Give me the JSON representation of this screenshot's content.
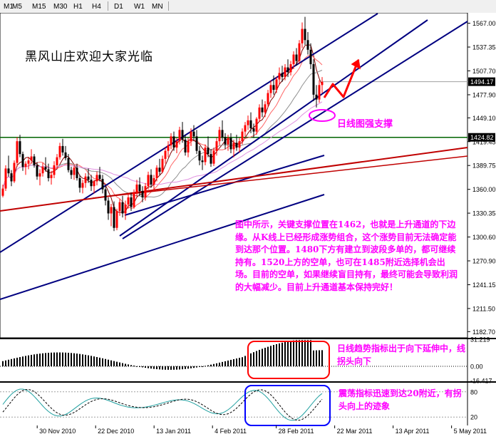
{
  "toolbar": {
    "timeframes": [
      {
        "id": "m1",
        "label": "M1"
      },
      {
        "id": "m5",
        "label": "M5"
      },
      {
        "id": "m15",
        "label": "M15"
      },
      {
        "id": "m30",
        "label": "M30"
      },
      {
        "id": "h1",
        "label": "H1"
      },
      {
        "id": "h4",
        "label": "H4"
      },
      {
        "id": "d1",
        "label": "D1"
      },
      {
        "id": "w1",
        "label": "W1"
      },
      {
        "id": "mn",
        "label": "MN"
      }
    ]
  },
  "annotations": {
    "watermark": "黑风山庄欢迎大家光临",
    "support_label": "日线图强支撑",
    "main_text": "图中所示，关键支撑位置在1462，也就是上升通道的下边缘。从K线上已经形成涨势组合，这个涨势目前无法确定能到达那个位置。1480下方有建立到波段多单的，都可继续持有。1520上方的空单，也可在1485附近选择机会出场。目前的空单，如果继续盲目持有，最终可能会导致利润的大幅减少。目前上升通道基本保持完好！",
    "trend_note": "日线趋势指标出于向下延伸中，线拐头向下",
    "osc_note": "震荡指标迅速到达20附近，有拐头向上的迹象"
  },
  "colors": {
    "candle_up": "#ff0000",
    "candle_down": "#000000",
    "channel": "#000080",
    "redline": "#c00000",
    "hline": "#006400",
    "annotation": "#ff00ff",
    "arrow": "#ff0000",
    "box_red": "#ff0000",
    "box_blue": "#0000ff",
    "price_box": "#000000"
  },
  "chart_data": [
    {
      "type": "candlestick",
      "x_tick_labels": [
        "30 Nov 2010",
        "22 Dec 2010",
        "13 Jan 2011",
        "4 Feb 2011",
        "28 Feb 2011",
        "22 Mar 2011",
        "13 Apr 2011",
        "5 May 2011"
      ],
      "y_tick_labels": [
        "1567.00",
        "1537.35",
        "1507.70",
        "1477.90",
        "1449.10",
        "1419.45",
        "1389.75",
        "1360.00",
        "1330.35",
        "1300.60",
        "1270.90",
        "1241.15",
        "1211.50",
        "1182.70"
      ],
      "ylim": [
        1175,
        1580
      ],
      "price_markers": [
        {
          "value": 1494.17,
          "label": "1494.17"
        },
        {
          "value": 1424.82,
          "label": "1424.82"
        }
      ],
      "x_dates": [
        "2010-11-16",
        "2011-05-11"
      ],
      "ohlc": [
        [
          1352,
          1366,
          1350,
          1361
        ],
        [
          1361,
          1390,
          1358,
          1386
        ],
        [
          1386,
          1402,
          1376,
          1380
        ],
        [
          1380,
          1384,
          1364,
          1370
        ],
        [
          1370,
          1396,
          1368,
          1393
        ],
        [
          1393,
          1425,
          1388,
          1420
        ],
        [
          1420,
          1428,
          1400,
          1404
        ],
        [
          1404,
          1407,
          1383,
          1388
        ],
        [
          1388,
          1395,
          1378,
          1392
        ],
        [
          1392,
          1400,
          1385,
          1396
        ],
        [
          1396,
          1410,
          1392,
          1401
        ],
        [
          1401,
          1404,
          1387,
          1390
        ],
        [
          1390,
          1394,
          1372,
          1376
        ],
        [
          1376,
          1385,
          1365,
          1380
        ],
        [
          1380,
          1393,
          1376,
          1388
        ],
        [
          1388,
          1400,
          1382,
          1385
        ],
        [
          1385,
          1392,
          1370,
          1374
        ],
        [
          1374,
          1383,
          1366,
          1378
        ],
        [
          1378,
          1395,
          1374,
          1390
        ],
        [
          1390,
          1404,
          1386,
          1400
        ],
        [
          1400,
          1418,
          1397,
          1414
        ],
        [
          1414,
          1423,
          1402,
          1406
        ],
        [
          1406,
          1414,
          1396,
          1399
        ],
        [
          1399,
          1404,
          1381,
          1384
        ],
        [
          1384,
          1388,
          1373,
          1378
        ],
        [
          1378,
          1390,
          1372,
          1387
        ],
        [
          1387,
          1392,
          1371,
          1374
        ],
        [
          1374,
          1378,
          1356,
          1362
        ],
        [
          1362,
          1372,
          1355,
          1368
        ],
        [
          1368,
          1380,
          1362,
          1376
        ],
        [
          1376,
          1386,
          1368,
          1372
        ],
        [
          1372,
          1378,
          1358,
          1364
        ],
        [
          1364,
          1372,
          1355,
          1370
        ],
        [
          1370,
          1382,
          1365,
          1378
        ],
        [
          1378,
          1388,
          1370,
          1373
        ],
        [
          1373,
          1378,
          1355,
          1360
        ],
        [
          1360,
          1364,
          1340,
          1346
        ],
        [
          1346,
          1350,
          1322,
          1330
        ],
        [
          1330,
          1342,
          1314,
          1338
        ],
        [
          1338,
          1345,
          1308,
          1312
        ],
        [
          1312,
          1336,
          1309,
          1333
        ],
        [
          1333,
          1348,
          1327,
          1344
        ],
        [
          1344,
          1352,
          1325,
          1330
        ],
        [
          1330,
          1346,
          1322,
          1341
        ],
        [
          1341,
          1354,
          1336,
          1350
        ],
        [
          1350,
          1356,
          1333,
          1338
        ],
        [
          1338,
          1360,
          1336,
          1356
        ],
        [
          1356,
          1372,
          1350,
          1366
        ],
        [
          1366,
          1375,
          1352,
          1358
        ],
        [
          1358,
          1364,
          1344,
          1350
        ],
        [
          1350,
          1368,
          1346,
          1364
        ],
        [
          1364,
          1382,
          1360,
          1378
        ],
        [
          1378,
          1385,
          1362,
          1366
        ],
        [
          1366,
          1378,
          1358,
          1374
        ],
        [
          1374,
          1390,
          1370,
          1387
        ],
        [
          1387,
          1398,
          1378,
          1382
        ],
        [
          1382,
          1402,
          1380,
          1398
        ],
        [
          1398,
          1412,
          1392,
          1408
        ],
        [
          1408,
          1420,
          1400,
          1415
        ],
        [
          1415,
          1430,
          1410,
          1426
        ],
        [
          1426,
          1432,
          1408,
          1412
        ],
        [
          1412,
          1424,
          1405,
          1420
        ],
        [
          1420,
          1438,
          1416,
          1434
        ],
        [
          1434,
          1444,
          1418,
          1422
        ],
        [
          1422,
          1428,
          1402,
          1406
        ],
        [
          1406,
          1424,
          1400,
          1420
        ],
        [
          1420,
          1436,
          1414,
          1432
        ],
        [
          1432,
          1440,
          1420,
          1426
        ],
        [
          1426,
          1434,
          1404,
          1408
        ],
        [
          1408,
          1414,
          1390,
          1396
        ],
        [
          1396,
          1402,
          1384,
          1394
        ],
        [
          1394,
          1416,
          1390,
          1412
        ],
        [
          1412,
          1426,
          1400,
          1404
        ],
        [
          1404,
          1410,
          1388,
          1392
        ],
        [
          1392,
          1412,
          1389,
          1408
        ],
        [
          1408,
          1424,
          1402,
          1420
        ],
        [
          1420,
          1438,
          1415,
          1434
        ],
        [
          1434,
          1446,
          1420,
          1425
        ],
        [
          1425,
          1430,
          1410,
          1416
        ],
        [
          1416,
          1428,
          1408,
          1424
        ],
        [
          1424,
          1430,
          1405,
          1410
        ],
        [
          1410,
          1422,
          1400,
          1418
        ],
        [
          1418,
          1428,
          1408,
          1412
        ],
        [
          1412,
          1424,
          1406,
          1420
        ],
        [
          1420,
          1436,
          1416,
          1432
        ],
        [
          1432,
          1444,
          1426,
          1440
        ],
        [
          1440,
          1452,
          1434,
          1446
        ],
        [
          1446,
          1456,
          1430,
          1436
        ],
        [
          1436,
          1442,
          1424,
          1432
        ],
        [
          1432,
          1450,
          1428,
          1448
        ],
        [
          1448,
          1466,
          1444,
          1462
        ],
        [
          1462,
          1472,
          1450,
          1456
        ],
        [
          1456,
          1470,
          1450,
          1466
        ],
        [
          1466,
          1484,
          1462,
          1480
        ],
        [
          1480,
          1496,
          1474,
          1490
        ],
        [
          1490,
          1502,
          1478,
          1484
        ],
        [
          1484,
          1500,
          1480,
          1497
        ],
        [
          1497,
          1512,
          1490,
          1505
        ],
        [
          1505,
          1514,
          1494,
          1500
        ],
        [
          1500,
          1516,
          1496,
          1512
        ],
        [
          1512,
          1522,
          1500,
          1506
        ],
        [
          1506,
          1520,
          1502,
          1516
        ],
        [
          1516,
          1532,
          1510,
          1528
        ],
        [
          1528,
          1536,
          1514,
          1520
        ],
        [
          1520,
          1546,
          1516,
          1542
        ],
        [
          1542,
          1568,
          1536,
          1560
        ],
        [
          1560,
          1575,
          1540,
          1546
        ],
        [
          1546,
          1556,
          1528,
          1534
        ],
        [
          1534,
          1542,
          1510,
          1516
        ],
        [
          1516,
          1522,
          1470,
          1478
        ],
        [
          1478,
          1490,
          1462,
          1472
        ],
        [
          1472,
          1496,
          1468,
          1490
        ],
        [
          1490,
          1500,
          1480,
          1494
        ]
      ]
    },
    {
      "type": "histogram",
      "name": "trend-indicator",
      "y_tick_labels": [
        "31.219",
        "0.00",
        "-16.417"
      ],
      "ylim": [
        -16.417,
        31.219
      ]
    },
    {
      "type": "line",
      "name": "oscillator",
      "y_tick_labels": [
        "80",
        "20"
      ],
      "ylim": [
        0,
        100
      ]
    }
  ]
}
